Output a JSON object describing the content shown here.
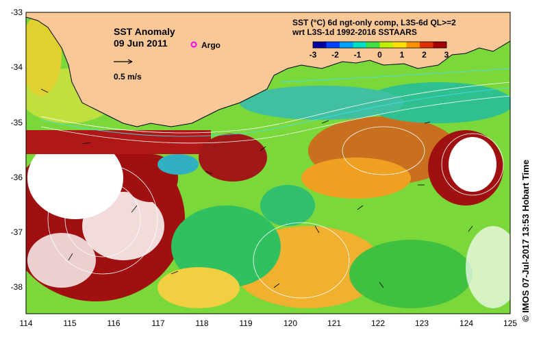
{
  "map": {
    "title": "SST Anomaly",
    "date": "09 Jun 2011",
    "argo_label": "Argo",
    "velocity_scale": "0.5 m/s",
    "caption_line1": "SST (°C) 6d ngt-only comp, L3S-6d QL>=2",
    "caption_line2": "wrt L3S-1d 1992-2016 SSTAARS",
    "colorbar": {
      "ticks": [
        "-3",
        "-2",
        "-1",
        "0",
        "1",
        "2",
        "3"
      ],
      "colors": [
        "#0000a0",
        "#0040ff",
        "#00a0ff",
        "#00e0c0",
        "#40e040",
        "#c0f000",
        "#ffe000",
        "#ff9000",
        "#e03000",
        "#a00000"
      ]
    },
    "lat_labels": [
      "-33",
      "-34",
      "-35",
      "-36",
      "-37",
      "-38"
    ],
    "lon_labels": [
      "114",
      "115",
      "116",
      "117",
      "118",
      "119",
      "120",
      "121",
      "122",
      "123",
      "124",
      "125"
    ],
    "credit": "© IMOS 07-Jul-2017 13:53 Hobart Time",
    "colors": {
      "land": "#f9c896",
      "coast": "#000000",
      "contour": "#ffffff"
    }
  }
}
